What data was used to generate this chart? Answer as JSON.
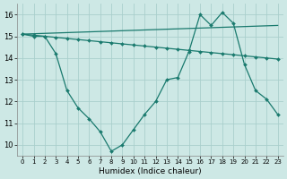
{
  "xlabel": "Humidex (Indice chaleur)",
  "xlim": [
    -0.5,
    23.5
  ],
  "ylim": [
    9.5,
    16.5
  ],
  "xticks": [
    0,
    1,
    2,
    3,
    4,
    5,
    6,
    7,
    8,
    9,
    10,
    11,
    12,
    13,
    14,
    15,
    16,
    17,
    18,
    19,
    20,
    21,
    22,
    23
  ],
  "yticks": [
    10,
    11,
    12,
    13,
    14,
    15,
    16
  ],
  "bg_color": "#cde8e5",
  "grid_color": "#aacfcc",
  "line_color": "#1a7a6e",
  "lines": [
    {
      "x": [
        0,
        1,
        2,
        3,
        4,
        5,
        6,
        7,
        8,
        9,
        10,
        11,
        12,
        13,
        14,
        15,
        16,
        17,
        18,
        19,
        20,
        21,
        22,
        23
      ],
      "y": [
        15.1,
        15.0,
        15.0,
        14.2,
        12.5,
        11.7,
        11.2,
        10.6,
        9.7,
        10.0,
        10.7,
        11.4,
        12.0,
        13.0,
        13.1,
        14.3,
        16.0,
        15.5,
        16.1,
        15.6,
        13.7,
        12.5,
        12.1,
        11.4
      ]
    },
    {
      "x": [
        0,
        1,
        2,
        3,
        4,
        5,
        6,
        7,
        8,
        9,
        10,
        11,
        12,
        13,
        14,
        15,
        16,
        17,
        18,
        19,
        20,
        21,
        22,
        23
      ],
      "y": [
        15.1,
        15.05,
        15.0,
        14.95,
        14.9,
        14.85,
        14.8,
        14.75,
        14.7,
        14.65,
        14.6,
        14.55,
        14.5,
        14.45,
        14.4,
        14.35,
        14.3,
        14.25,
        14.2,
        14.15,
        14.1,
        14.05,
        14.0,
        13.95
      ]
    },
    {
      "x": [
        0,
        23
      ],
      "y": [
        15.1,
        15.5
      ]
    }
  ]
}
